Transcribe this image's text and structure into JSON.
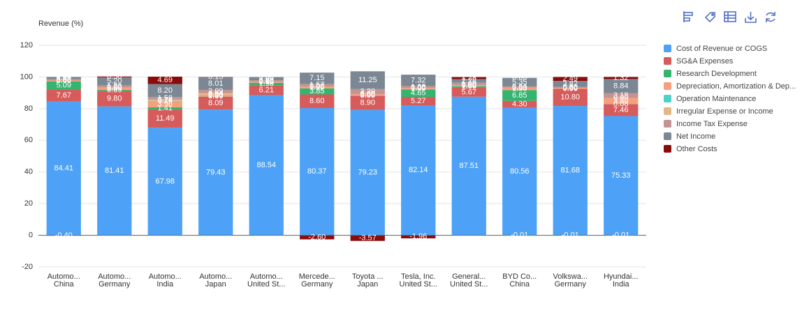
{
  "chart_data": {
    "type": "stacked-bar",
    "y_label": "Revenue (%)",
    "ylim": [
      -20,
      120
    ],
    "yticks": [
      -20,
      0,
      20,
      40,
      60,
      80,
      100,
      120
    ],
    "grid": true,
    "legend": "right",
    "categories": [
      [
        "Automo...",
        "China"
      ],
      [
        "Automo...",
        "Germany"
      ],
      [
        "Automo...",
        "India"
      ],
      [
        "Automo...",
        "Japan"
      ],
      [
        "Automo...",
        "United St..."
      ],
      [
        "Mercede...",
        "Germany"
      ],
      [
        "Toyota ...",
        "Japan"
      ],
      [
        "Tesla, Inc.",
        "United St..."
      ],
      [
        "General...",
        "United St..."
      ],
      [
        "BYD Co...",
        "China"
      ],
      [
        "Volkswa...",
        "Germany"
      ],
      [
        "Hyundai...",
        "India"
      ]
    ],
    "series": [
      {
        "name": "Cost of Revenue or COGS",
        "color": "#4da2f7",
        "values": [
          84.41,
          81.41,
          67.98,
          79.43,
          88.54,
          80.37,
          79.23,
          82.14,
          87.51,
          80.56,
          81.68,
          75.33
        ],
        "value_labels": [
          "84.41",
          "81.41",
          "67.98",
          "79.43",
          "88.54",
          "80.37",
          "79.23",
          "82.14",
          "87.51",
          "80.56",
          "81.68",
          "75.33"
        ]
      },
      {
        "name": "SG&A Expenses",
        "color": "#d65b5b",
        "values": [
          7.67,
          9.8,
          11.49,
          8.09,
          6.21,
          8.6,
          8.9,
          5.27,
          5.67,
          4.3,
          10.8,
          7.46
        ],
        "value_labels": [
          "7.67",
          "9.80",
          "11.49",
          "8.09",
          "6.21",
          "8.60",
          "8.90",
          "5.27",
          "5.67",
          "4.30",
          "10.80",
          "7.46"
        ]
      },
      {
        "name": "Research Development",
        "color": "#35b46f",
        "values": [
          5.09,
          0.69,
          1.41,
          0.09,
          1.5,
          3.85,
          0,
          4.65,
          1,
          6.85,
          0,
          0.08
        ],
        "value_labels": [
          "5.09",
          "0.69",
          "1.41",
          "0.09",
          "1.50",
          "3.85",
          "0.00",
          "4.65",
          "1.00",
          "6.85",
          "0.00",
          "0.08"
        ]
      },
      {
        "name": "Depreciation, Amortization & Dep...",
        "color": "#f5a07c",
        "values": [
          0.6,
          1.5,
          3.96,
          1.2,
          0.6,
          1.2,
          1,
          1,
          0.6,
          1.5,
          0.6,
          3.8
        ],
        "value_labels": [
          "0.60",
          "1.50",
          "3.96",
          "1.20",
          "0.60",
          "1.20",
          "1.00",
          "1.00",
          "0.60",
          "1.50",
          "0.60",
          "3.80"
        ]
      },
      {
        "name": "Operation Maintenance",
        "color": "#4ed1c6",
        "values": [
          0,
          0,
          0.14,
          0,
          0.2,
          0,
          0,
          0,
          0,
          0,
          0,
          0
        ],
        "value_labels": [
          "0.00",
          "0.00",
          "0.14",
          "0.00",
          "0.20",
          "0.00",
          "0.00",
          "0.00",
          "0.00",
          "0.00",
          "0.00",
          "0.00"
        ]
      },
      {
        "name": "Irregular Expense or Income",
        "color": "#e3b887",
        "values": [
          -0.4,
          0,
          0.74,
          0.94,
          0,
          0,
          0,
          0,
          0,
          -0.01,
          -0.01,
          -0.01
        ],
        "value_labels": [
          "-0.40",
          "0.00",
          "0.74",
          "0.94",
          "0.00",
          "0.00",
          "0.00",
          "0.00",
          "0.00",
          "-0.01",
          "-0.01",
          "-0.01"
        ]
      },
      {
        "name": "Income Tax Expense",
        "color": "#c49393",
        "values": [
          0.8,
          1.2,
          1.58,
          2.09,
          0.9,
          1.57,
          3.2,
          1.08,
          1.6,
          0.84,
          0.6,
          3.18
        ],
        "value_labels": [
          "0.80",
          "1.20",
          "1.58",
          "2.09",
          "0.90",
          "1.57",
          "3.20",
          "1.08",
          "1.60",
          "0.84",
          "0.60",
          "3.18"
        ]
      },
      {
        "name": "Net Income",
        "color": "#7b8894",
        "values": [
          1.43,
          5.2,
          8.2,
          8.01,
          2,
          7.15,
          11.25,
          7.32,
          2.28,
          5.35,
          3.82,
          8.84
        ],
        "value_labels": [
          "1.43",
          "5.20",
          "8.20",
          "8.01",
          "2.00",
          "7.15",
          "11.25",
          "7.32",
          "2.28",
          "5.35",
          "3.82",
          "8.84"
        ]
      },
      {
        "name": "Other Costs",
        "color": "#8b0a0a",
        "values": [
          0,
          0.5,
          4.69,
          0.15,
          0,
          -2.6,
          -3.57,
          -1.96,
          1.28,
          0,
          2.49,
          1.32
        ],
        "value_labels": [
          "0.00",
          "0.50",
          "4.69",
          "0.15",
          "0.00",
          "-2.60",
          "-3.57",
          "-1.96",
          "1.28",
          "0.00",
          "2.49",
          "1.32"
        ]
      }
    ]
  }
}
